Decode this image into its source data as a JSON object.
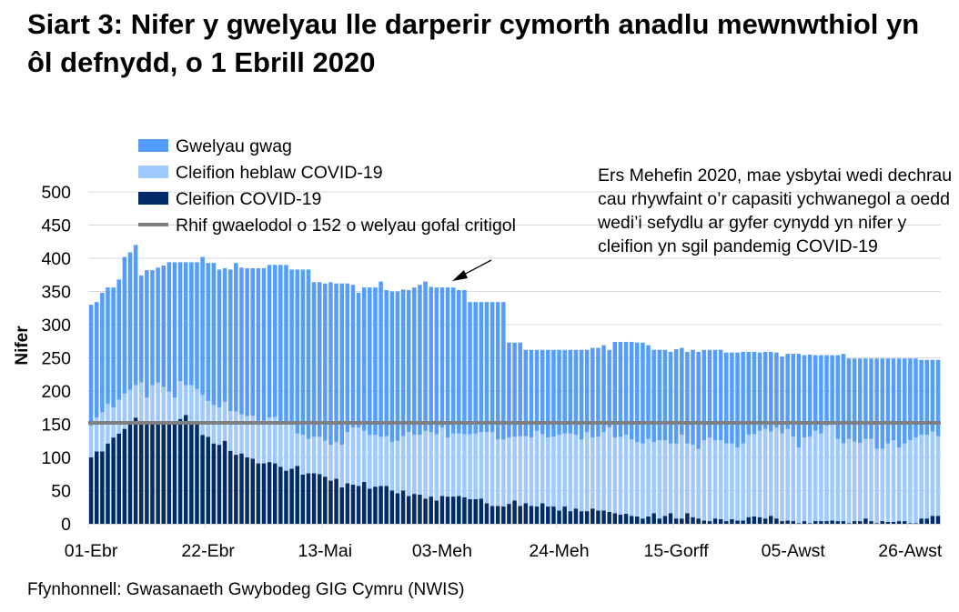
{
  "title": "Siart 3: Nifer y gwelyau lle darperir cymorth anadlu mewnwthiol yn ôl defnydd, o 1 Ebrill 2020",
  "source": "Ffynhonnell: Gwasanaeth Gwybodeg GIG Cymru (NWIS)",
  "annotation": "Ers Mehefin 2020, mae ysbytai wedi dechrau cau rhywfaint o’r capasiti ychwanegol a oedd wedi’i sefydlu ar gyfer cynydd yn nifer y cleifion yn sgil pandemig COVID-19",
  "chart_data": {
    "type": "bar",
    "stacked": true,
    "title": "Siart 3: Nifer y gwelyau lle darperir cymorth anadlu mewnwthiol yn ôl defnydd, o 1 Ebrill 2020",
    "xlabel": "",
    "ylabel": "Nifer",
    "ylim": [
      0,
      500
    ],
    "yticks": [
      "0",
      "50",
      "100",
      "150",
      "200",
      "250",
      "300",
      "350",
      "400",
      "450",
      "500"
    ],
    "x_start": "01-Ebr",
    "x_interval": "daily",
    "xtick_labels": [
      "01-Ebr",
      "22-Ebr",
      "13-Mai",
      "03-Meh",
      "24-Meh",
      "15-Gorff",
      "05-Awst",
      "26-Awst"
    ],
    "grid": "horizontal",
    "legend_position": "top-left",
    "series": [
      {
        "name": "Cleifion COVID-19",
        "color": "#002D6A",
        "values": [
          100,
          109,
          109,
          121,
          130,
          136,
          143,
          152,
          160,
          152,
          152,
          152,
          152,
          152,
          152,
          152,
          158,
          164,
          150,
          150,
          134,
          131,
          121,
          119,
          125,
          110,
          104,
          106,
          100,
          98,
          91,
          91,
          93,
          91,
          86,
          80,
          83,
          87,
          74,
          76,
          76,
          75,
          71,
          65,
          68,
          55,
          61,
          59,
          57,
          63,
          53,
          56,
          57,
          57,
          50,
          46,
          50,
          42,
          45,
          44,
          38,
          41,
          35,
          42,
          41,
          41,
          42,
          40,
          37,
          37,
          38,
          31,
          27,
          27,
          26,
          30,
          35,
          27,
          31,
          27,
          26,
          31,
          26,
          26,
          20,
          26,
          19,
          23,
          19,
          19,
          23,
          20,
          20,
          18,
          16,
          14,
          15,
          12,
          11,
          8,
          11,
          16,
          8,
          12,
          16,
          8,
          8,
          16,
          10,
          8,
          5,
          4,
          8,
          7,
          4,
          7,
          5,
          5,
          10,
          11,
          10,
          8,
          12,
          8,
          4,
          5,
          4,
          1,
          4,
          1,
          4,
          4,
          4,
          5,
          4,
          4,
          1,
          4,
          4,
          8,
          4,
          1,
          4,
          3,
          3,
          4,
          4,
          1,
          1,
          8,
          8,
          12,
          12
        ]
      },
      {
        "name": "Cleifion heblaw COVID-19",
        "color": "#9FC9FF",
        "values": [
          48,
          51,
          59,
          60,
          45,
          51,
          53,
          50,
          49,
          61,
          38,
          57,
          61,
          54,
          47,
          38,
          57,
          45,
          59,
          53,
          60,
          54,
          58,
          56,
          59,
          60,
          65,
          59,
          62,
          65,
          64,
          64,
          67,
          70,
          65,
          71,
          66,
          49,
          60,
          52,
          55,
          56,
          54,
          54,
          55,
          64,
          77,
          86,
          88,
          77,
          81,
          78,
          74,
          75,
          73,
          79,
          82,
          96,
          89,
          90,
          102,
          97,
          100,
          103,
          89,
          95,
          94,
          95,
          98,
          99,
          100,
          107,
          111,
          100,
          101,
          100,
          96,
          105,
          101,
          103,
          114,
          104,
          104,
          105,
          114,
          110,
          117,
          111,
          108,
          119,
          107,
          111,
          118,
          127,
          114,
          117,
          119,
          115,
          112,
          113,
          117,
          107,
          118,
          114,
          105,
          113,
          126,
          105,
          109,
          105,
          121,
          126,
          118,
          119,
          117,
          114,
          110,
          116,
          124,
          124,
          130,
          135,
          127,
          137,
          132,
          138,
          127,
          114,
          126,
          130,
          136,
          132,
          144,
          144,
          124,
          117,
          127,
          120,
          118,
          120,
          124,
          112,
          109,
          118,
          123,
          111,
          117,
          125,
          129,
          126,
          126,
          127,
          120
        ]
      },
      {
        "name": "Gwelyau gwag",
        "color": "#559DFC",
        "values": [
          182,
          174,
          180,
          175,
          181,
          181,
          206,
          207,
          211,
          161,
          192,
          173,
          173,
          183,
          195,
          204,
          179,
          185,
          185,
          191,
          208,
          208,
          214,
          208,
          201,
          213,
          224,
          221,
          223,
          222,
          230,
          230,
          230,
          229,
          239,
          239,
          234,
          247,
          249,
          255,
          233,
          233,
          237,
          245,
          239,
          243,
          224,
          215,
          203,
          216,
          222,
          222,
          234,
          220,
          227,
          225,
          221,
          214,
          222,
          226,
          225,
          219,
          221,
          211,
          226,
          220,
          216,
          217,
          199,
          198,
          196,
          196,
          196,
          207,
          207,
          143,
          142,
          141,
          130,
          132,
          122,
          127,
          132,
          131,
          128,
          126,
          126,
          128,
          135,
          124,
          135,
          134,
          131,
          117,
          144,
          143,
          140,
          147,
          150,
          152,
          141,
          139,
          136,
          136,
          138,
          142,
          131,
          138,
          143,
          146,
          136,
          132,
          136,
          136,
          137,
          137,
          143,
          138,
          125,
          124,
          118,
          116,
          120,
          113,
          116,
          113,
          125,
          141,
          124,
          124,
          114,
          118,
          106,
          105,
          126,
          135,
          121,
          125,
          127,
          121,
          121,
          136,
          136,
          128,
          123,
          134,
          128,
          123,
          119,
          113,
          113,
          108,
          115
        ]
      }
    ],
    "reference_line": {
      "name": "Rhif gwaelodol o 152 o welyau gofal critigol",
      "value": 152,
      "color": "#7F7F7F"
    },
    "legend": [
      "Gwelyau gwag",
      "Cleifion heblaw COVID-19",
      "Cleifion COVID-19",
      "Rhif gwaelodol o 152 o welyau gofal critigol"
    ]
  }
}
